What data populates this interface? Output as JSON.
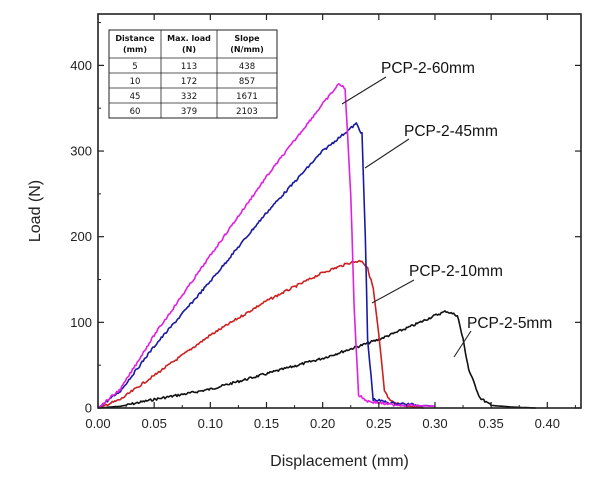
{
  "chart_data": {
    "type": "line",
    "title": "",
    "xlabel": "Displacement (mm)",
    "ylabel": "Load (N)",
    "xlim": [
      0.0,
      0.43
    ],
    "ylim": [
      0,
      460
    ],
    "x_ticks": [
      "0.00",
      "0.05",
      "0.10",
      "0.15",
      "0.20",
      "0.25",
      "0.30",
      "0.35",
      "0.40"
    ],
    "y_ticks": [
      "0",
      "100",
      "200",
      "300",
      "400"
    ],
    "grid": false,
    "legend": "none",
    "series": [
      {
        "name": "PCP-2-5mm",
        "color": "#111111",
        "x": [
          0.0,
          0.02,
          0.05,
          0.08,
          0.1,
          0.15,
          0.2,
          0.25,
          0.28,
          0.3,
          0.31,
          0.32,
          0.325,
          0.33,
          0.34,
          0.35,
          0.37,
          0.39
        ],
        "y": [
          0,
          2,
          10,
          17,
          22,
          40,
          58,
          80,
          96,
          108,
          113,
          108,
          80,
          45,
          12,
          3,
          1,
          0
        ]
      },
      {
        "name": "PCP-2-10mm",
        "color": "#cc2222",
        "x": [
          0.0,
          0.02,
          0.05,
          0.1,
          0.15,
          0.2,
          0.225,
          0.235,
          0.24,
          0.245,
          0.25,
          0.255,
          0.26,
          0.27,
          0.29
        ],
        "y": [
          0,
          10,
          38,
          85,
          125,
          158,
          170,
          172,
          163,
          140,
          85,
          20,
          8,
          3,
          0
        ]
      },
      {
        "name": "PCP-2-45mm",
        "color": "#1a1aa0",
        "x": [
          0.0,
          0.02,
          0.05,
          0.1,
          0.15,
          0.2,
          0.23,
          0.235,
          0.238,
          0.24,
          0.245,
          0.26,
          0.3
        ],
        "y": [
          0,
          20,
          72,
          148,
          228,
          300,
          332,
          320,
          200,
          80,
          10,
          6,
          2
        ]
      },
      {
        "name": "PCP-2-60mm",
        "color": "#e020e0",
        "x": [
          0.0,
          0.02,
          0.05,
          0.1,
          0.15,
          0.2,
          0.215,
          0.22,
          0.225,
          0.228,
          0.232,
          0.24,
          0.26,
          0.3
        ],
        "y": [
          0,
          22,
          85,
          178,
          270,
          355,
          379,
          372,
          250,
          120,
          15,
          8,
          4,
          2
        ]
      }
    ],
    "annotations": [
      {
        "text": "PCP-2-60mm",
        "points_to": "PCP-2-60mm"
      },
      {
        "text": "PCP-2-45mm",
        "points_to": "PCP-2-45mm"
      },
      {
        "text": "PCP-2-10mm",
        "points_to": "PCP-2-10mm"
      },
      {
        "text": "PCP-2-5mm",
        "points_to": "PCP-2-5mm"
      }
    ],
    "inset_table": {
      "headers": [
        [
          "Distance",
          "(mm)"
        ],
        [
          "Max. load",
          "(N)"
        ],
        [
          "Slope",
          "(N/mm)"
        ]
      ],
      "rows": [
        [
          "5",
          "113",
          "438"
        ],
        [
          "10",
          "172",
          "857"
        ],
        [
          "45",
          "332",
          "1671"
        ],
        [
          "60",
          "379",
          "2103"
        ]
      ]
    }
  }
}
